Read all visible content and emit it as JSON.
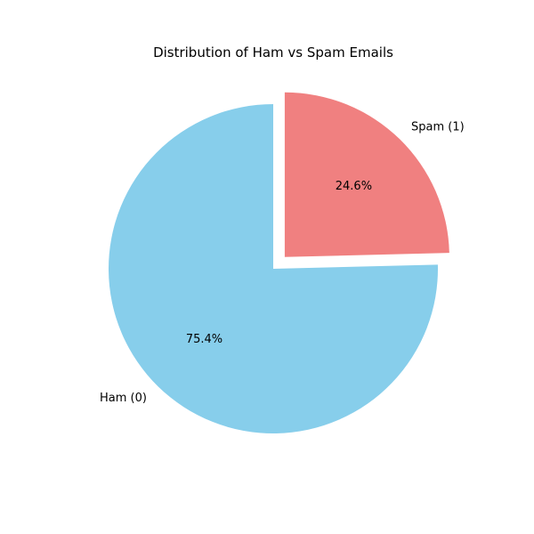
{
  "chart_data": {
    "type": "pie",
    "title": "Distribution of Ham vs Spam Emails",
    "start_angle_deg": 90,
    "direction": "counterclockwise",
    "slices": [
      {
        "label": "Ham (0)",
        "value": 75.4,
        "pct_label": "75.4%",
        "color": "#87ceeb",
        "exploded": false
      },
      {
        "label": "Spam (1)",
        "value": 24.6,
        "pct_label": "24.6%",
        "color": "#f08080",
        "exploded": true
      }
    ]
  }
}
